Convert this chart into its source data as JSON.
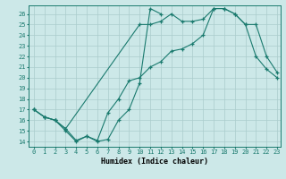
{
  "line1_x": [
    0,
    1,
    2,
    3,
    4,
    5,
    6,
    7,
    8,
    9,
    10,
    11,
    12
  ],
  "line1_y": [
    17,
    16.3,
    16.0,
    15.0,
    14.0,
    14.5,
    14.0,
    14.2,
    16.0,
    17.0,
    19.5,
    26.5,
    26.0
  ],
  "line2_x": [
    0,
    1,
    2,
    3,
    4,
    5,
    6,
    7,
    8,
    9,
    10,
    11,
    12,
    13,
    14,
    15,
    16,
    17,
    18,
    19,
    20,
    21,
    22,
    23
  ],
  "line2_y": [
    17,
    16.3,
    16.0,
    15.2,
    14.1,
    14.5,
    14.1,
    16.7,
    18.0,
    19.7,
    20.0,
    21.0,
    21.5,
    22.5,
    22.7,
    23.2,
    24.0,
    26.5,
    26.5,
    26.0,
    25.0,
    22.0,
    20.8,
    20.0
  ],
  "line3_x": [
    0,
    1,
    2,
    3,
    10,
    11,
    12,
    13,
    14,
    15,
    16,
    17,
    18,
    19,
    20,
    21,
    22,
    23
  ],
  "line3_y": [
    17,
    16.3,
    16.0,
    15.2,
    25.0,
    25.0,
    25.3,
    26.0,
    25.3,
    25.3,
    25.5,
    26.5,
    26.5,
    26.0,
    25.0,
    25.0,
    22.0,
    20.5
  ],
  "line_color": "#1a7a6e",
  "bg_color": "#cce8e8",
  "grid_color": "#aacccc",
  "xlabel": "Humidex (Indice chaleur)",
  "ylim": [
    13.5,
    26.8
  ],
  "xlim": [
    -0.5,
    23.3
  ],
  "yticks": [
    14,
    15,
    16,
    17,
    18,
    19,
    20,
    21,
    22,
    23,
    24,
    25,
    26
  ],
  "xticks": [
    0,
    1,
    2,
    3,
    4,
    5,
    6,
    7,
    8,
    9,
    10,
    11,
    12,
    13,
    14,
    15,
    16,
    17,
    18,
    19,
    20,
    21,
    22,
    23
  ],
  "xtick_labels": [
    "0",
    "1",
    "2",
    "3",
    "4",
    "5",
    "6",
    "7",
    "8",
    "9",
    "10",
    "11",
    "12",
    "13",
    "14",
    "15",
    "16",
    "17",
    "18",
    "19",
    "20",
    "21",
    "22",
    "23"
  ],
  "marker": "+",
  "linewidth": 0.8,
  "marker_size": 3.5,
  "marker_edge_width": 0.9
}
